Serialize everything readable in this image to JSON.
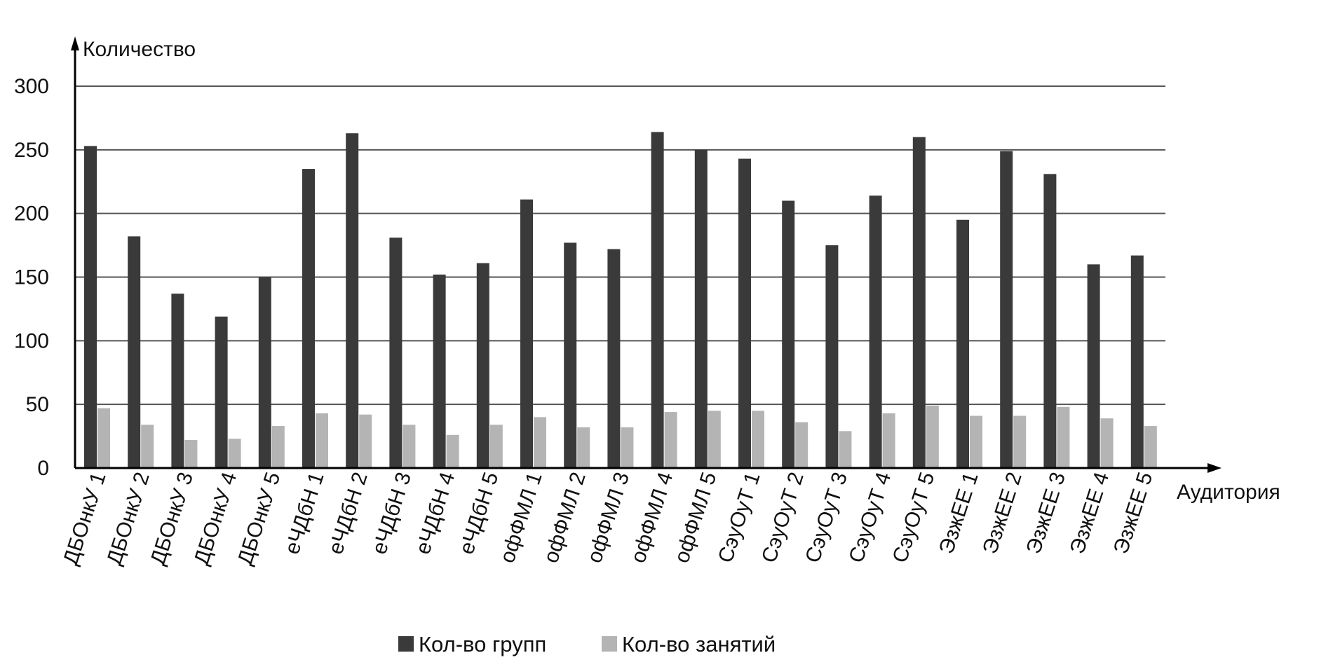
{
  "chart_data": {
    "type": "bar",
    "ylabel": "Количество",
    "xlabel": "Аудитория",
    "ylim": [
      0,
      300
    ],
    "yticks": [
      0,
      50,
      100,
      150,
      200,
      250,
      300
    ],
    "grid": true,
    "legend_position": "bottom",
    "categories": [
      "ДБОнкУ 1",
      "ДБОнкУ 2",
      "ДБОнкУ 3",
      "ДБОнкУ 4",
      "ДБОнкУ 5",
      "еЧДбН 1",
      "еЧДбН 2",
      "еЧДбН 3",
      "еЧДбН 4",
      "еЧДбН 5",
      "офФМЛ 1",
      "офФМЛ 2",
      "офФМЛ 3",
      "офФМЛ 4",
      "офФМЛ 5",
      "СэуОуТ 1",
      "СэуОуТ 2",
      "СэуОуТ 3",
      "СэуОуТ 4",
      "СэуОуТ 5",
      "ЭзжЕЕ 1",
      "ЭзжЕЕ 2",
      "ЭзжЕЕ 3",
      "ЭзжЕЕ 4",
      "ЭзжЕЕ 5"
    ],
    "series": [
      {
        "name": "Кол-во групп",
        "color": "#3a3a3a",
        "values": [
          253,
          182,
          137,
          119,
          150,
          235,
          263,
          181,
          152,
          161,
          211,
          177,
          172,
          264,
          250,
          243,
          210,
          175,
          214,
          260,
          195,
          249,
          231,
          160,
          167
        ]
      },
      {
        "name": "Кол-во занятий",
        "color": "#b4b4b4",
        "values": [
          47,
          34,
          22,
          23,
          33,
          43,
          42,
          34,
          26,
          34,
          40,
          32,
          32,
          44,
          45,
          45,
          36,
          29,
          43,
          49,
          41,
          41,
          48,
          39,
          33
        ]
      }
    ]
  }
}
